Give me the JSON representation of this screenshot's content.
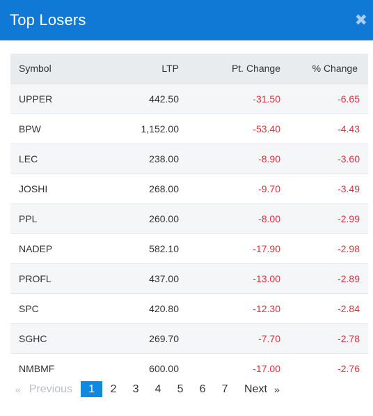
{
  "header": {
    "title": "Top Losers",
    "close_symbol": "✖"
  },
  "table": {
    "columns": [
      "Symbol",
      "LTP",
      "Pt. Change",
      "% Change"
    ],
    "rows": [
      {
        "symbol": "UPPER",
        "ltp": "442.50",
        "pt_change": "-31.50",
        "pct_change": "-6.65"
      },
      {
        "symbol": "BPW",
        "ltp": "1,152.00",
        "pt_change": "-53.40",
        "pct_change": "-4.43"
      },
      {
        "symbol": "LEC",
        "ltp": "238.00",
        "pt_change": "-8.90",
        "pct_change": "-3.60"
      },
      {
        "symbol": "JOSHI",
        "ltp": "268.00",
        "pt_change": "-9.70",
        "pct_change": "-3.49"
      },
      {
        "symbol": "PPL",
        "ltp": "260.00",
        "pt_change": "-8.00",
        "pct_change": "-2.99"
      },
      {
        "symbol": "NADEP",
        "ltp": "582.10",
        "pt_change": "-17.90",
        "pct_change": "-2.98"
      },
      {
        "symbol": "PROFL",
        "ltp": "437.00",
        "pt_change": "-13.00",
        "pct_change": "-2.89"
      },
      {
        "symbol": "SPC",
        "ltp": "420.80",
        "pt_change": "-12.30",
        "pct_change": "-2.84"
      },
      {
        "symbol": "SGHC",
        "ltp": "269.70",
        "pt_change": "-7.70",
        "pct_change": "-2.78"
      },
      {
        "symbol": "NMBMF",
        "ltp": "600.00",
        "pt_change": "-17.00",
        "pct_change": "-2.76"
      }
    ]
  },
  "pagination": {
    "prev_arrow": "«",
    "prev_label": "Previous",
    "pages": [
      "1",
      "2",
      "3",
      "4",
      "5",
      "6",
      "7"
    ],
    "active_page": "1",
    "next_label": "Next",
    "next_arrow": "»"
  },
  "colors": {
    "header_bg": "#1079d6",
    "negative": "#e0303d",
    "active_page": "#1089e0"
  }
}
